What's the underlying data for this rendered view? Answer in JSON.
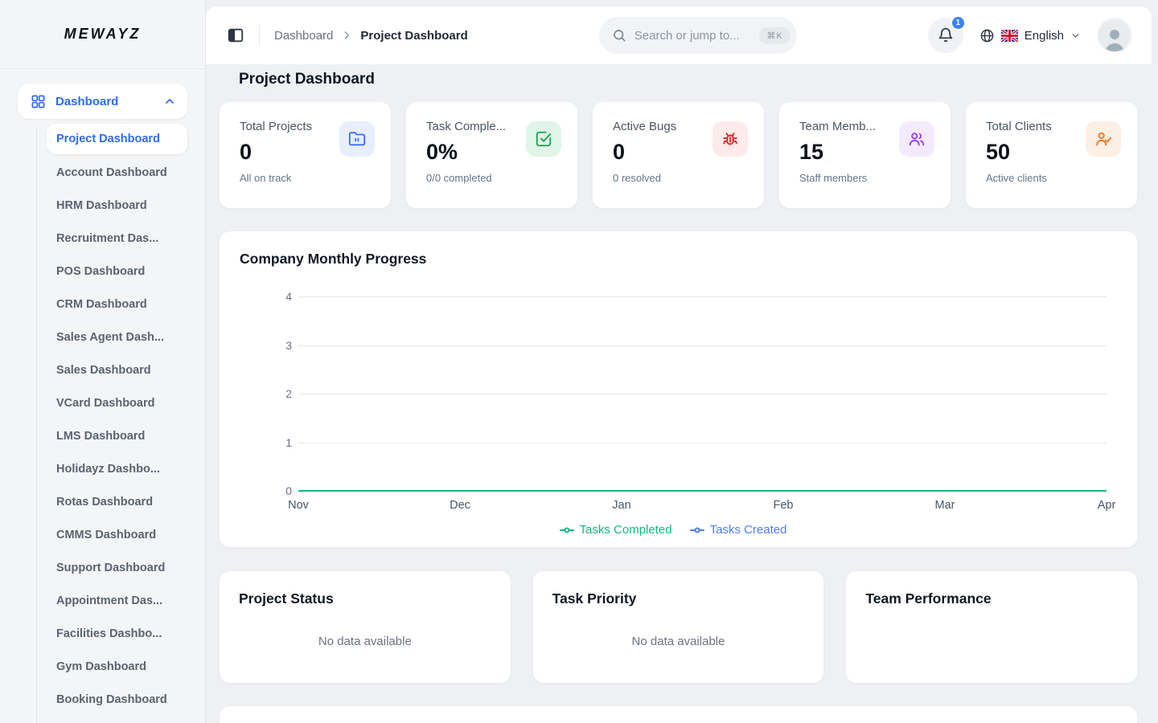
{
  "brand": {
    "logo": "MEWAYZ"
  },
  "sidebar": {
    "section": {
      "label": "Dashboard"
    },
    "items": [
      {
        "label": "Project Dashboard",
        "active": true
      },
      {
        "label": "Account Dashboard",
        "active": false
      },
      {
        "label": "HRM Dashboard",
        "active": false
      },
      {
        "label": "Recruitment Das...",
        "active": false
      },
      {
        "label": "POS Dashboard",
        "active": false
      },
      {
        "label": "CRM Dashboard",
        "active": false
      },
      {
        "label": "Sales Agent Dash...",
        "active": false
      },
      {
        "label": "Sales Dashboard",
        "active": false
      },
      {
        "label": "VCard Dashboard",
        "active": false
      },
      {
        "label": "LMS Dashboard",
        "active": false
      },
      {
        "label": "Holidayz Dashbo...",
        "active": false
      },
      {
        "label": "Rotas Dashboard",
        "active": false
      },
      {
        "label": "CMMS Dashboard",
        "active": false
      },
      {
        "label": "Support Dashboard",
        "active": false
      },
      {
        "label": "Appointment Das...",
        "active": false
      },
      {
        "label": "Facilities Dashbo...",
        "active": false
      },
      {
        "label": "Gym Dashboard",
        "active": false
      },
      {
        "label": "Booking Dashboard",
        "active": false
      }
    ]
  },
  "header": {
    "breadcrumb": {
      "parent": "Dashboard",
      "current": "Project Dashboard"
    },
    "search": {
      "placeholder": "Search or jump to...",
      "shortcut": "⌘K"
    },
    "notifications_count": "1",
    "language": "English"
  },
  "page": {
    "title": "Project Dashboard"
  },
  "stats": [
    {
      "label": "Total Projects",
      "value": "0",
      "caption": "All on track",
      "icon": "folder-icon",
      "color": "#3b6ef5",
      "bg": "#e8eefc"
    },
    {
      "label": "Task Comple...",
      "value": "0%",
      "caption": "0/0 completed",
      "icon": "check-square-icon",
      "color": "#17a34a",
      "bg": "#e0f5e8"
    },
    {
      "label": "Active Bugs",
      "value": "0",
      "caption": "0 resolved",
      "icon": "bug-icon",
      "color": "#dc2626",
      "bg": "#fdeaea"
    },
    {
      "label": "Team Memb...",
      "value": "15",
      "caption": "Staff members",
      "icon": "users-icon",
      "color": "#9b3df0",
      "bg": "#f4eafe"
    },
    {
      "label": "Total Clients",
      "value": "50",
      "caption": "Active clients",
      "icon": "user-check-icon",
      "color": "#ed7524",
      "bg": "#fcefe3"
    }
  ],
  "chart_data": {
    "type": "line",
    "title": "Company Monthly Progress",
    "x": [
      "Nov",
      "Dec",
      "Jan",
      "Feb",
      "Mar",
      "Apr"
    ],
    "series": [
      {
        "name": "Tasks Completed",
        "values": [
          0,
          0,
          0,
          0,
          0,
          0
        ],
        "color": "#10b981"
      },
      {
        "name": "Tasks Created",
        "values": [
          0,
          0,
          0,
          0,
          0,
          0
        ],
        "color": "#4f7cf0"
      }
    ],
    "yticks": [
      0,
      1,
      2,
      3,
      4
    ],
    "ylim": [
      0,
      4
    ],
    "xlabel": "",
    "ylabel": "",
    "grid": true,
    "legend_position": "bottom"
  },
  "panels": [
    {
      "title": "Project Status",
      "empty_text": "No data available"
    },
    {
      "title": "Task Priority",
      "empty_text": "No data available"
    },
    {
      "title": "Team Performance",
      "empty_text": ""
    }
  ]
}
